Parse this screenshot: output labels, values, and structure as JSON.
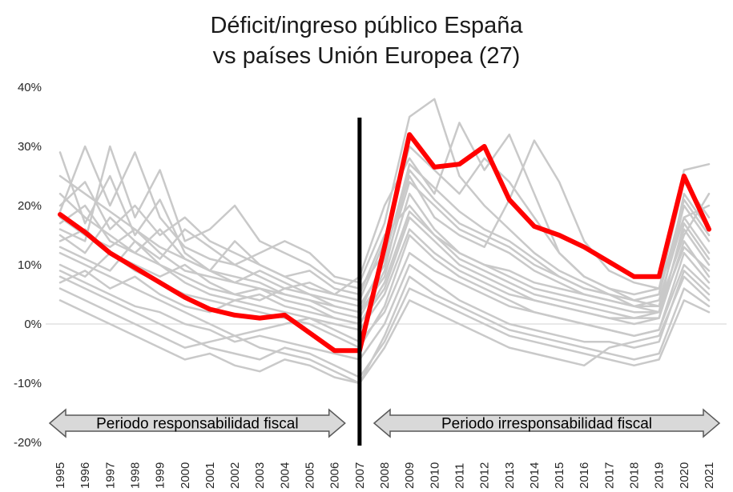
{
  "title": {
    "line1": "Déficit/ingreso público España",
    "line2": "vs países Unión Europea (27)"
  },
  "chart_data": {
    "type": "line",
    "title": "Déficit/ingreso público España vs países Unión Europea (27)",
    "x_years": [
      1995,
      1996,
      1997,
      1998,
      1999,
      2000,
      2001,
      2002,
      2003,
      2004,
      2005,
      2006,
      2007,
      2008,
      2009,
      2010,
      2011,
      2012,
      2013,
      2014,
      2015,
      2016,
      2017,
      2018,
      2019,
      2020,
      2021
    ],
    "ylim": [
      -20,
      40
    ],
    "y_tick_values": [
      40,
      30,
      20,
      10,
      0,
      -10,
      -20
    ],
    "y_tick_labels": [
      "40%",
      "30%",
      "20%",
      "10%",
      "0%",
      "-10%",
      "-20%"
    ],
    "grid": "zero-line-only",
    "legend": "none",
    "highlight_series": {
      "name": "España",
      "color": "#ff0000",
      "values": [
        18.5,
        15.5,
        12,
        9.5,
        7,
        4.5,
        2.5,
        1.5,
        1,
        1.5,
        -1.5,
        -4.5,
        -4.5,
        13,
        32,
        26.5,
        27,
        30,
        21,
        16.5,
        15,
        13,
        10.5,
        8,
        8,
        25,
        16
      ]
    },
    "background_series_color": "#c9c9c9",
    "background_series": [
      [
        19,
        30,
        20,
        29,
        18,
        13,
        11,
        10,
        12,
        14,
        12,
        8,
        7,
        17,
        35,
        38,
        25,
        20,
        16,
        12,
        9,
        7,
        5,
        4,
        3,
        20,
        14
      ],
      [
        29,
        17,
        25,
        15,
        21,
        12,
        9,
        14,
        10,
        8,
        6,
        5,
        8,
        20,
        28,
        22,
        34,
        26,
        32,
        22,
        12,
        8,
        6,
        4,
        5,
        26,
        27
      ],
      [
        16,
        14,
        30,
        18,
        26,
        14,
        16,
        20,
        14,
        12,
        10,
        7,
        6,
        12,
        25,
        18,
        15,
        13,
        21,
        31,
        24,
        14,
        9,
        7,
        6,
        18,
        12
      ],
      [
        22,
        18,
        15,
        12,
        10,
        8,
        6,
        5,
        4,
        6,
        5,
        3,
        2,
        8,
        22,
        16,
        12,
        10,
        8,
        6,
        5,
        4,
        3,
        2,
        2,
        16,
        10
      ],
      [
        12,
        10,
        8,
        6,
        4,
        2,
        0,
        -2,
        -1,
        0,
        1,
        -1,
        -3,
        2,
        12,
        9,
        7,
        5,
        3,
        2,
        1,
        0,
        -1,
        -2,
        -1,
        10,
        6
      ],
      [
        8,
        6,
        4,
        2,
        0,
        -2,
        -4,
        -5,
        -6,
        -4,
        -5,
        -7,
        -9,
        -3,
        6,
        4,
        2,
        0,
        -2,
        -3,
        -4,
        -5,
        -6,
        -7,
        -6,
        4,
        2
      ],
      [
        14,
        16,
        12,
        10,
        8,
        10,
        7,
        5,
        6,
        4,
        3,
        1,
        0,
        6,
        18,
        14,
        10,
        8,
        6,
        4,
        3,
        2,
        1,
        0,
        1,
        14,
        8
      ],
      [
        10,
        8,
        12,
        9,
        7,
        5,
        4,
        3,
        2,
        1,
        0,
        -2,
        -4,
        3,
        15,
        11,
        8,
        6,
        4,
        2,
        1,
        0,
        -1,
        -2,
        -1,
        12,
        7
      ],
      [
        6,
        4,
        2,
        0,
        -2,
        -4,
        -3,
        -2,
        -4,
        -5,
        -6,
        -8,
        -10,
        -2,
        8,
        5,
        3,
        1,
        -1,
        -2,
        -3,
        -4,
        -5,
        -6,
        -5,
        6,
        3
      ],
      [
        18,
        15,
        13,
        16,
        12,
        9,
        8,
        7,
        9,
        7,
        5,
        4,
        3,
        10,
        24,
        20,
        16,
        14,
        12,
        9,
        7,
        5,
        4,
        3,
        4,
        18,
        20
      ],
      [
        25,
        22,
        19,
        16,
        13,
        11,
        9,
        8,
        7,
        5,
        4,
        2,
        1,
        9,
        26,
        21,
        17,
        15,
        13,
        10,
        8,
        6,
        5,
        3,
        2,
        22,
        16
      ],
      [
        4,
        2,
        0,
        -2,
        -4,
        -6,
        -5,
        -7,
        -8,
        -6,
        -7,
        -9,
        -10,
        -4,
        4,
        2,
        0,
        -2,
        -4,
        -5,
        -6,
        -7,
        -4,
        -3,
        -2,
        8,
        4
      ],
      [
        15,
        12,
        18,
        14,
        11,
        16,
        13,
        10,
        8,
        6,
        7,
        5,
        4,
        14,
        30,
        26,
        22,
        28,
        24,
        18,
        12,
        8,
        6,
        5,
        6,
        24,
        18
      ],
      [
        20,
        24,
        16,
        20,
        15,
        18,
        14,
        12,
        10,
        8,
        9,
        6,
        5,
        15,
        20,
        15,
        12,
        10,
        9,
        7,
        6,
        5,
        4,
        3,
        3,
        15,
        22
      ],
      [
        7,
        9,
        6,
        8,
        5,
        3,
        2,
        4,
        3,
        2,
        1,
        0,
        -1,
        5,
        16,
        12,
        9,
        7,
        5,
        4,
        3,
        2,
        1,
        1,
        2,
        13,
        9
      ],
      [
        13,
        11,
        9,
        14,
        10,
        7,
        5,
        4,
        5,
        3,
        2,
        1,
        0,
        7,
        19,
        15,
        11,
        9,
        7,
        5,
        4,
        3,
        2,
        1,
        1,
        17,
        11
      ],
      [
        9,
        7,
        5,
        3,
        2,
        0,
        -1,
        -3,
        -2,
        -3,
        -4,
        -5,
        -6,
        0,
        10,
        7,
        4,
        2,
        0,
        -1,
        -2,
        -3,
        -3,
        -4,
        -3,
        9,
        5
      ],
      [
        17,
        20,
        14,
        12,
        16,
        11,
        9,
        7,
        6,
        5,
        4,
        3,
        2,
        11,
        27,
        23,
        19,
        16,
        14,
        11,
        8,
        6,
        5,
        4,
        5,
        21,
        15
      ]
    ],
    "divider": {
      "year": 2007,
      "color": "#000000"
    },
    "annotation_arrows": [
      {
        "label": "Periodo responsabilidad fiscal",
        "start_year": 1995,
        "end_year": 2006,
        "fill": "#d9d9d9",
        "stroke": "#595959"
      },
      {
        "label": "Periodo irresponsabilidad fiscal",
        "start_year": 2008,
        "end_year": 2021,
        "fill": "#d9d9d9",
        "stroke": "#595959"
      }
    ],
    "colors": {
      "highlight": "#ff0000",
      "background_lines": "#c9c9c9",
      "zero_gridline": "#d9d9d9",
      "text": "#262626"
    }
  }
}
